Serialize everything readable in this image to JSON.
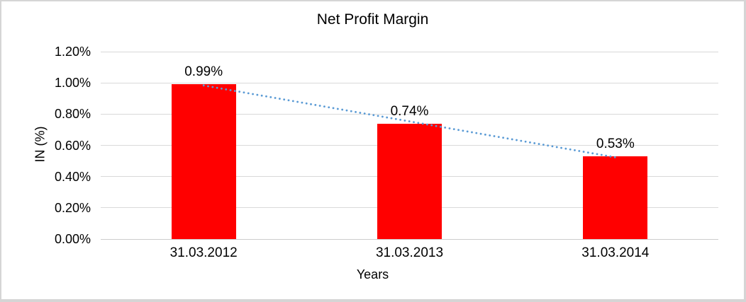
{
  "window": {
    "background_color": "#FFFFFF",
    "border_color": "#D5D5D5"
  },
  "chart_data": {
    "type": "bar",
    "title": "Net Profit Margin",
    "xlabel": "Years",
    "ylabel": "IN (%)",
    "categories": [
      "31.03.2012",
      "31.03.2013",
      "31.03.2014"
    ],
    "values": [
      0.99,
      0.74,
      0.53
    ],
    "data_labels": [
      "0.99%",
      "0.74%",
      "0.53%"
    ],
    "ylim": [
      0,
      1.2
    ],
    "yticks": [
      0,
      0.2,
      0.4,
      0.6,
      0.8,
      1.0,
      1.2
    ],
    "ytick_labels": [
      "0.00%",
      "0.20%",
      "0.40%",
      "0.60%",
      "0.80%",
      "1.00%",
      "1.20%"
    ],
    "grid": true,
    "legend": "none",
    "bar_color": "#FF0000",
    "gridline_color": "#D9D9D9",
    "axis_line_color": "#CDCDCD",
    "text_color": "#000000",
    "trendline": {
      "type": "linear",
      "style": "dotted",
      "color": "#5B9BD5"
    }
  }
}
